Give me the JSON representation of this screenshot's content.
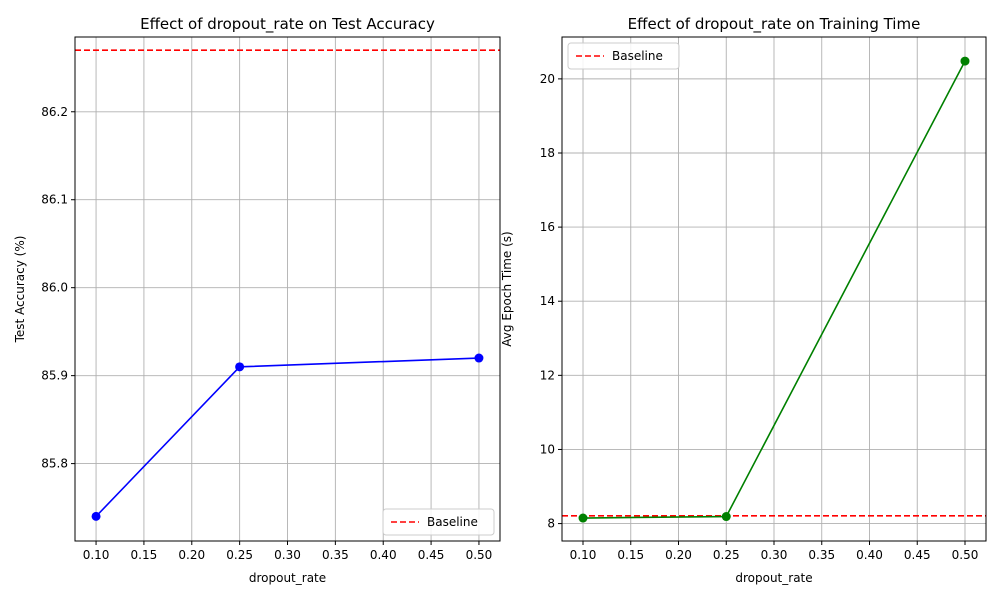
{
  "chart_data": [
    {
      "type": "line",
      "title": "Effect of dropout_rate on Test Accuracy",
      "xlabel": "dropout_rate",
      "ylabel": "Test Accuracy (%)",
      "xlim": [
        0.078,
        0.522
      ],
      "ylim": [
        85.712,
        86.285
      ],
      "xticks": [
        0.1,
        0.15,
        0.2,
        0.25,
        0.3,
        0.35,
        0.4,
        0.45,
        0.5
      ],
      "xtick_labels": [
        "0.10",
        "0.15",
        "0.20",
        "0.25",
        "0.30",
        "0.35",
        "0.40",
        "0.45",
        "0.50"
      ],
      "yticks": [
        85.8,
        85.9,
        86.0,
        86.1,
        86.2
      ],
      "ytick_labels": [
        "85.8",
        "85.9",
        "86.0",
        "86.1",
        "86.2"
      ],
      "grid": true,
      "legend_position": "bottom-right",
      "series": [
        {
          "x": [
            0.1,
            0.25,
            0.5
          ],
          "y": [
            85.74,
            85.91,
            85.92
          ],
          "color": "#0000ff",
          "marker": "circle"
        }
      ],
      "hlines": [
        {
          "name": "Baseline",
          "y": 86.27,
          "color": "#ff0000",
          "style": "dashed"
        }
      ]
    },
    {
      "type": "line",
      "title": "Effect of dropout_rate on Training Time",
      "xlabel": "dropout_rate",
      "ylabel": "Avg Epoch Time (s)",
      "xlim": [
        0.078,
        0.522
      ],
      "ylim": [
        7.53,
        21.13
      ],
      "xticks": [
        0.1,
        0.15,
        0.2,
        0.25,
        0.3,
        0.35,
        0.4,
        0.45,
        0.5
      ],
      "xtick_labels": [
        "0.10",
        "0.15",
        "0.20",
        "0.25",
        "0.30",
        "0.35",
        "0.40",
        "0.45",
        "0.50"
      ],
      "yticks": [
        8,
        10,
        12,
        14,
        16,
        18,
        20
      ],
      "ytick_labels": [
        "8",
        "10",
        "12",
        "14",
        "16",
        "18",
        "20"
      ],
      "grid": true,
      "legend_position": "top-left",
      "series": [
        {
          "x": [
            0.1,
            0.25,
            0.5
          ],
          "y": [
            8.15,
            8.19,
            20.48
          ],
          "color": "#008000",
          "marker": "circle"
        }
      ],
      "hlines": [
        {
          "name": "Baseline",
          "y": 8.21,
          "color": "#ff0000",
          "style": "dashed"
        }
      ]
    }
  ]
}
